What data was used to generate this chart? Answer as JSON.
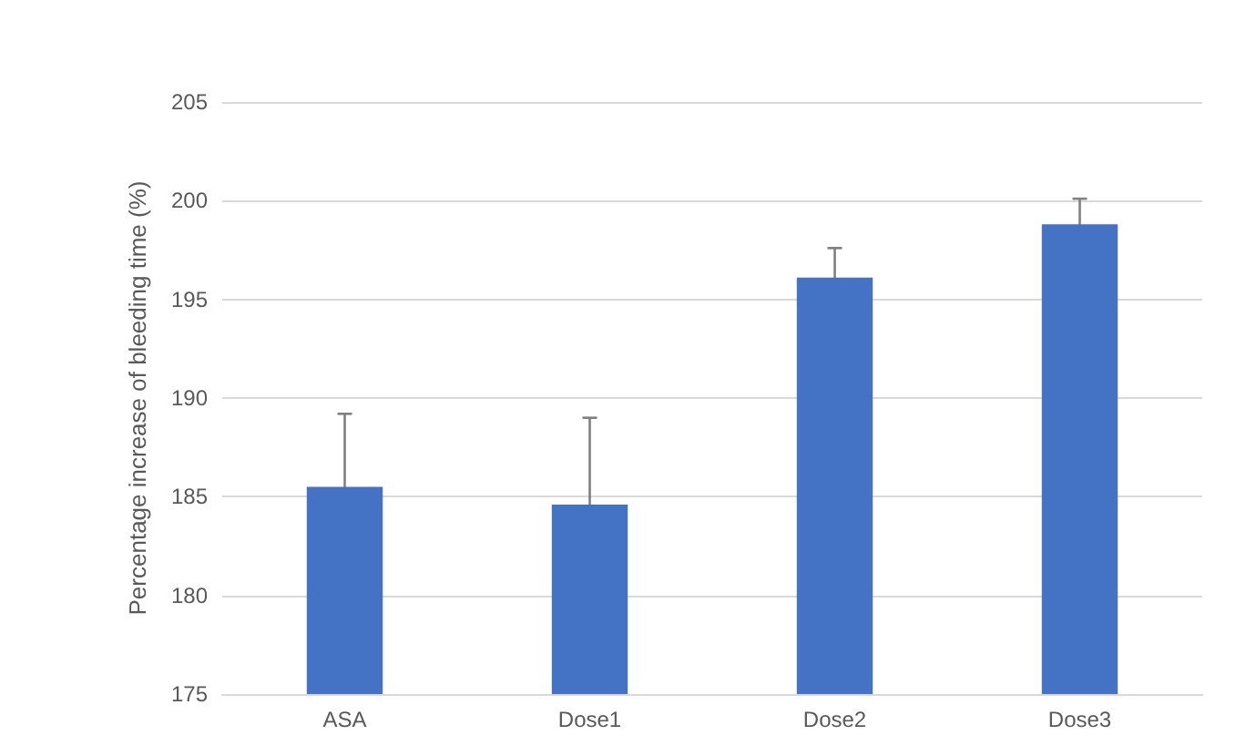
{
  "chart_data": {
    "type": "bar",
    "ylabel": "Percentage increase of bleeding time (%)",
    "categories": [
      "ASA",
      "Dose1",
      "Dose2",
      "Dose3"
    ],
    "values": [
      185.5,
      184.6,
      196.1,
      198.8
    ],
    "errors": [
      3.7,
      4.4,
      1.5,
      1.3
    ],
    "color": "#4472c4",
    "ylim": [
      175,
      205
    ],
    "yticks": [
      175,
      180,
      185,
      190,
      195,
      200,
      205
    ],
    "grid": "y"
  }
}
